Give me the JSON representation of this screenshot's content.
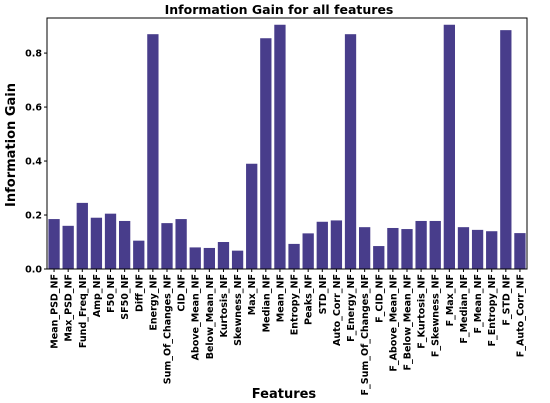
{
  "chart_data": {
    "type": "bar",
    "title": "Information Gain for all features",
    "xlabel": "Features",
    "ylabel": "Information Gain",
    "ylim": [
      0,
      0.93
    ],
    "yticks": [
      0.0,
      0.2,
      0.4,
      0.6,
      0.8
    ],
    "ytick_labels": [
      "0.0",
      "0.2",
      "0.4",
      "0.6",
      "0.8"
    ],
    "grid": false,
    "bar_color": "#483d8b",
    "categories": [
      "Mean_PSD_NF",
      "Max_PSD_NF",
      "Fund_Freq_NF",
      "Amp_NF",
      "F50_NF",
      "SF50_NF",
      "Diff_NF",
      "Energy_NF",
      "Sum_Of_Changes_NF",
      "CID_NF",
      "Above_Mean_NF",
      "Below_Mean_NF",
      "Kurtosis_NF",
      "Skewness_NF",
      "Max_NF",
      "Median_NF",
      "Mean_NF",
      "Entropy_NF",
      "Peaks_NF",
      "STD_NF",
      "Auto_Corr_NF",
      "F_Energy_NF",
      "F_Sum_Of_Changes_NF",
      "F_CID_NF",
      "F_Above_Mean_NF",
      "F_Below_Mean_NF",
      "F_Kurtosis_NF",
      "F_Skewness_NF",
      "F_Max_NF",
      "F_Median_NF",
      "F_Mean_NF",
      "F_Entropy_NF",
      "F_STD_NF",
      "F_Auto_Corr_NF"
    ],
    "values": [
      0.185,
      0.16,
      0.245,
      0.19,
      0.205,
      0.178,
      0.105,
      0.87,
      0.17,
      0.185,
      0.08,
      0.078,
      0.1,
      0.068,
      0.39,
      0.855,
      0.905,
      0.093,
      0.132,
      0.175,
      0.18,
      0.87,
      0.155,
      0.085,
      0.152,
      0.148,
      0.178,
      0.178,
      0.905,
      0.155,
      0.145,
      0.14,
      0.885,
      0.133
    ]
  }
}
